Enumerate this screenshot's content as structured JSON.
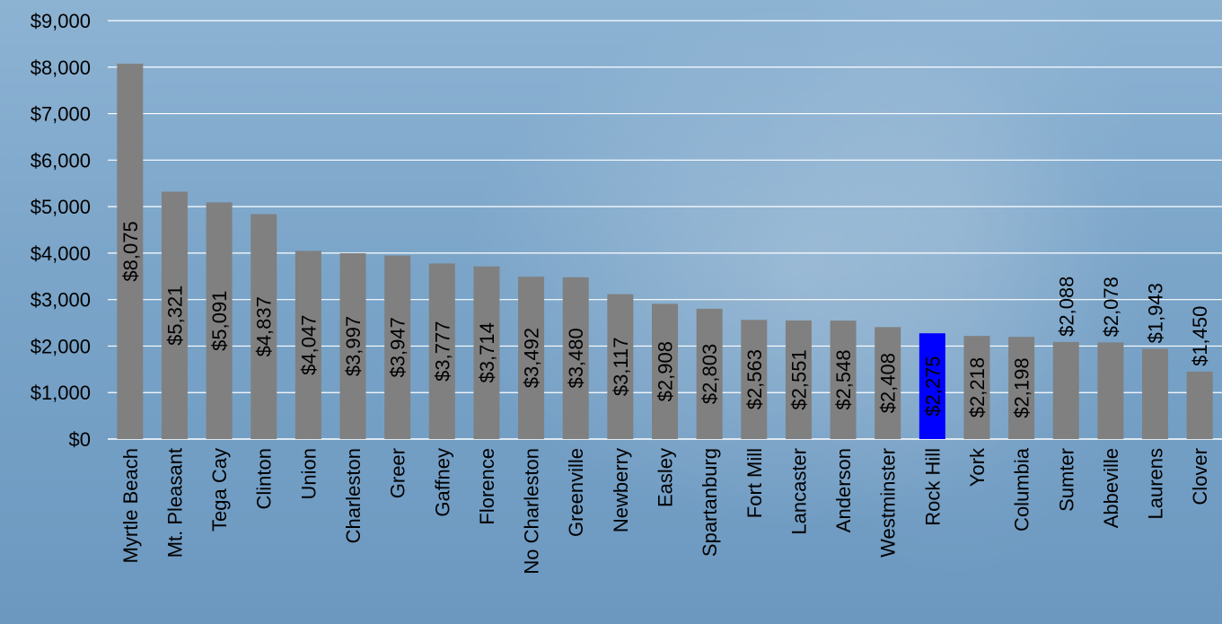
{
  "chart_data": {
    "type": "bar",
    "title": "",
    "xlabel": "",
    "ylabel": "",
    "ylim": [
      0,
      9000
    ],
    "yticks": [
      0,
      1000,
      2000,
      3000,
      4000,
      5000,
      6000,
      7000,
      8000,
      9000
    ],
    "ytick_labels": [
      "$0",
      "$1,000",
      "$2,000",
      "$3,000",
      "$4,000",
      "$5,000",
      "$6,000",
      "$7,000",
      "$8,000",
      "$9,000"
    ],
    "grid": true,
    "legend": "none",
    "categories": [
      "Myrtle Beach",
      "Mt. Pleasant",
      "Tega Cay",
      "Clinton",
      "Union",
      "Charleston",
      "Greer",
      "Gaffney",
      "Florence",
      "No Charleston",
      "Greenville",
      "Newberry",
      "Easley",
      "Spartanburg",
      "Fort Mill",
      "Lancaster",
      "Anderson",
      "Westminster",
      "Rock Hill",
      "York",
      "Columbia",
      "Sumter",
      "Abbeville",
      "Laurens",
      "Clover"
    ],
    "values": [
      8075,
      5321,
      5091,
      4837,
      4047,
      3997,
      3947,
      3777,
      3714,
      3492,
      3480,
      3117,
      2908,
      2803,
      2563,
      2551,
      2548,
      2408,
      2275,
      2218,
      2198,
      2088,
      2078,
      1943,
      1450
    ],
    "data_labels": [
      "$8,075",
      "$5,321",
      "$5,091",
      "$4,837",
      "$4,047",
      "$3,997",
      "$3,947",
      "$3,777",
      "$3,714",
      "$3,492",
      "$3,480",
      "$3,117",
      "$2,908",
      "$2,803",
      "$2,563",
      "$2,551",
      "$2,548",
      "$2,408",
      "$2,275",
      "$2,218",
      "$2,198",
      "$2,088",
      "$2,078",
      "$1,943",
      "$1,450"
    ],
    "highlight_category": "Rock Hill",
    "colors": {
      "bar": "#808080",
      "highlight": "#0000ff",
      "grid": "#ffffff",
      "axis": "#ffffff",
      "text": "#000000"
    }
  }
}
